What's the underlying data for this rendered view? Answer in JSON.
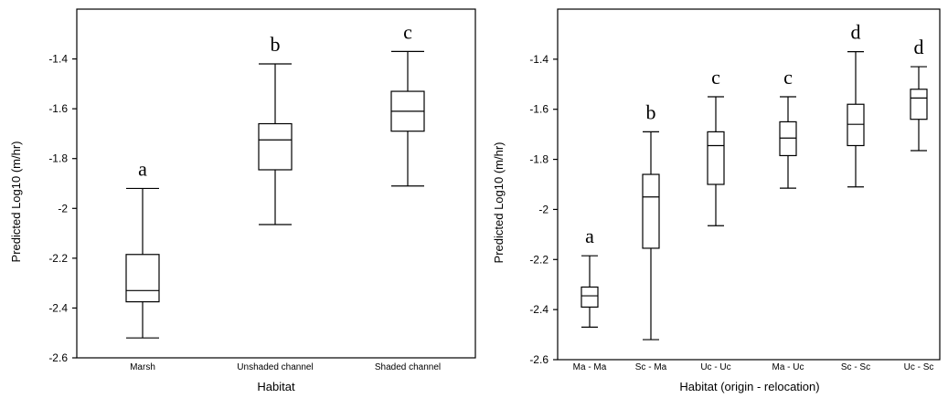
{
  "chart_data": [
    {
      "type": "box",
      "xlabel": "Habitat",
      "ylabel": "Predicted Log10 (m/hr)",
      "ylim": [
        -2.6,
        -1.2
      ],
      "yticks": [
        "-1.4",
        "-1.6",
        "-1.8",
        "-2",
        "-2.2",
        "-2.4",
        "-2.6"
      ],
      "ytick_values": [
        -1.4,
        -1.6,
        -1.8,
        -2.0,
        -2.2,
        -2.4,
        -2.6
      ],
      "categories": [
        "Marsh",
        "Unshaded channel",
        "Shaded channel"
      ],
      "boxes": [
        {
          "min": -2.52,
          "q1": -2.375,
          "median": -2.33,
          "q3": -2.185,
          "max": -1.92,
          "label": "a"
        },
        {
          "min": -2.065,
          "q1": -1.845,
          "median": -1.725,
          "q3": -1.66,
          "max": -1.42,
          "label": "b"
        },
        {
          "min": -1.91,
          "q1": -1.69,
          "median": -1.61,
          "q3": -1.53,
          "max": -1.37,
          "label": "c"
        }
      ]
    },
    {
      "type": "box",
      "xlabel": "Habitat (origin - relocation)",
      "ylabel": "Predicted Log10 (m/hr)",
      "ylim": [
        -2.6,
        -1.2
      ],
      "yticks": [
        "-1.4",
        "-1.6",
        "-1.8",
        "-2",
        "-2.2",
        "-2.4",
        "-2.6"
      ],
      "ytick_values": [
        -1.4,
        -1.6,
        -1.8,
        -2.0,
        -2.2,
        -2.4,
        -2.6
      ],
      "categories": [
        "Ma - Ma",
        "Sc - Ma",
        "Uc - Uc",
        "Ma - Uc",
        "Sc - Sc",
        "Uc - Sc"
      ],
      "boxes": [
        {
          "min": -2.47,
          "q1": -2.39,
          "median": -2.345,
          "q3": -2.31,
          "max": -2.185,
          "label": "a"
        },
        {
          "min": -2.52,
          "q1": -2.155,
          "median": -1.95,
          "q3": -1.86,
          "max": -1.69,
          "label": "b"
        },
        {
          "min": -2.065,
          "q1": -1.9,
          "median": -1.745,
          "q3": -1.69,
          "max": -1.55,
          "label": "c"
        },
        {
          "min": -1.915,
          "q1": -1.785,
          "median": -1.715,
          "q3": -1.65,
          "max": -1.55,
          "label": "c"
        },
        {
          "min": -1.91,
          "q1": -1.745,
          "median": -1.66,
          "q3": -1.58,
          "max": -1.37,
          "label": "d"
        },
        {
          "min": -1.765,
          "q1": -1.64,
          "median": -1.555,
          "q3": -1.52,
          "max": -1.43,
          "label": "d"
        }
      ]
    }
  ]
}
